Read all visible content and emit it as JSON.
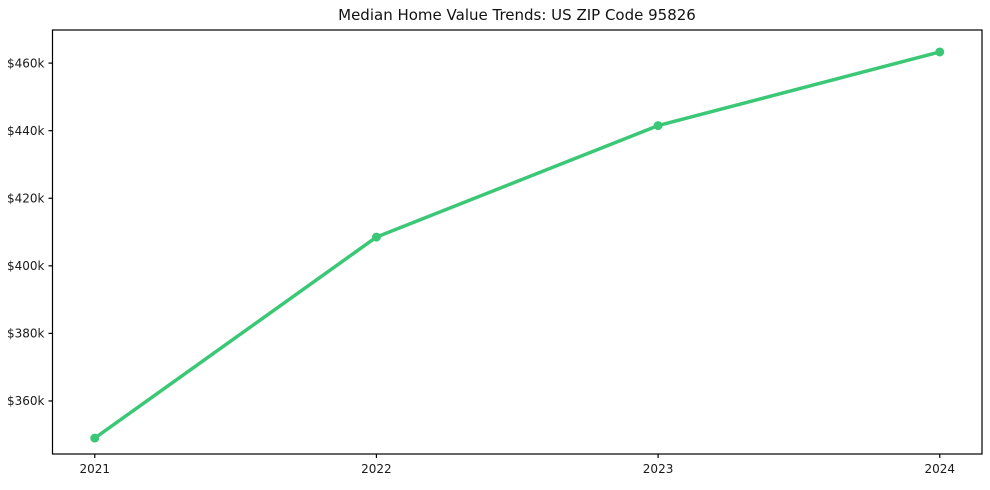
{
  "chart_data": {
    "type": "line",
    "title": "Median Home Value Trends: US ZIP Code 95826",
    "x": [
      2021,
      2022,
      2023,
      2024
    ],
    "x_tick_labels": [
      "2021",
      "2022",
      "2023",
      "2024"
    ],
    "series": [
      {
        "name": "Median Home Value",
        "values": [
          349000,
          408500,
          441500,
          463300
        ]
      }
    ],
    "y_ticks": [
      360000,
      380000,
      400000,
      420000,
      440000,
      460000
    ],
    "y_tick_labels": [
      "$360k",
      "$380k",
      "$400k",
      "$420k",
      "$440k",
      "$460k"
    ],
    "xlim": [
      2020.85,
      2024.15
    ],
    "ylim": [
      344300,
      469800
    ],
    "grid": false,
    "legend": "none",
    "line_color": "#3bc876",
    "marker": "circle",
    "axis_color": "#000000",
    "tick_label_color": "#1a1a1a",
    "xlabel": "",
    "ylabel": ""
  }
}
